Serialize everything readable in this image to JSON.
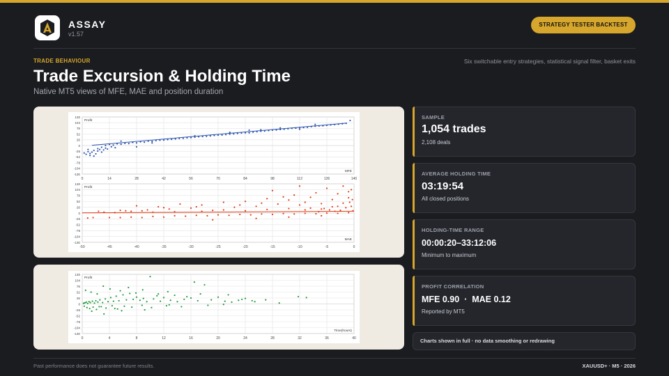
{
  "header": {
    "brand": "ASSAY",
    "version": "v1.57",
    "badge": "STRATEGY TESTER BACKTEST"
  },
  "hero": {
    "eyebrow": "TRADE BEHAVIOUR",
    "tagline": "Six switchable entry strategies, statistical signal filter, basket exits",
    "title": "Trade Excursion & Holding Time",
    "subtitle": "Native MT5 views of MFE, MAE and position duration"
  },
  "stats": [
    {
      "label": "SAMPLE",
      "value": "1,054 trades",
      "note": "2,108 deals"
    },
    {
      "label": "AVERAGE HOLDING TIME",
      "value": "03:19:54",
      "note": "All closed positions"
    },
    {
      "label": "HOLDING-TIME RANGE",
      "value": "00:00:20–33:12:06",
      "note": "Minimum to maximum"
    },
    {
      "label": "PROFIT CORRELATION",
      "value": "MFE 0.90  ·  MAE 0.12",
      "note": "Reported by MT5"
    }
  ],
  "charts_note": "Charts shown in full · no data smoothing or redrawing",
  "footer": {
    "disclaimer": "Past performance does not guarantee future results.",
    "meta": "XAUUSD+ · M5 · 2026"
  },
  "colors": {
    "accent": "#d6a72c",
    "mfe_series": "#2f56b0",
    "mae_series": "#e03a10",
    "holding_series": "#1e9a3a"
  },
  "chart_data": [
    {
      "type": "scatter",
      "ylabel": "Profit",
      "xlabel": "MFE",
      "x_ticks": [
        0,
        14,
        28,
        42,
        56,
        70,
        84,
        98,
        112,
        126,
        140
      ],
      "y_ticks": [
        130,
        104,
        78,
        52,
        26,
        0,
        -26,
        -52,
        -78,
        -104,
        -130
      ],
      "xlim": [
        0,
        140
      ],
      "ylim": [
        -130,
        130
      ],
      "grid": true,
      "series_color": "#2f56b0",
      "trend": {
        "from": [
          5,
          1
        ],
        "to": [
          136,
          102
        ]
      },
      "points": [
        [
          1,
          -34
        ],
        [
          2,
          -40
        ],
        [
          3,
          -28
        ],
        [
          4,
          -45
        ],
        [
          5,
          -30
        ],
        [
          6,
          -22
        ],
        [
          7,
          -38
        ],
        [
          8,
          -25
        ],
        [
          9,
          -18
        ],
        [
          10,
          -30
        ],
        [
          11,
          -20
        ],
        [
          12,
          -12
        ],
        [
          13,
          -16
        ],
        [
          15,
          -6
        ],
        [
          17,
          -10
        ],
        [
          3,
          -18
        ],
        [
          6,
          -48
        ],
        [
          4,
          -36
        ],
        [
          8,
          -14
        ],
        [
          10,
          -8
        ],
        [
          12,
          0
        ],
        [
          14,
          5
        ],
        [
          16,
          2
        ],
        [
          18,
          8
        ],
        [
          20,
          6
        ],
        [
          22,
          10
        ],
        [
          24,
          9
        ],
        [
          26,
          14
        ],
        [
          28,
          12
        ],
        [
          30,
          17
        ],
        [
          32,
          15
        ],
        [
          34,
          20
        ],
        [
          36,
          19
        ],
        [
          38,
          22
        ],
        [
          40,
          24
        ],
        [
          42,
          25
        ],
        [
          44,
          27
        ],
        [
          46,
          28
        ],
        [
          48,
          30
        ],
        [
          50,
          32
        ],
        [
          52,
          33
        ],
        [
          54,
          35
        ],
        [
          56,
          36
        ],
        [
          58,
          38
        ],
        [
          60,
          40
        ],
        [
          62,
          41
        ],
        [
          64,
          42
        ],
        [
          66,
          44
        ],
        [
          68,
          46
        ],
        [
          70,
          47
        ],
        [
          72,
          48
        ],
        [
          74,
          50
        ],
        [
          76,
          52
        ],
        [
          78,
          53
        ],
        [
          80,
          55
        ],
        [
          82,
          57
        ],
        [
          84,
          58
        ],
        [
          86,
          58
        ],
        [
          88,
          61
        ],
        [
          90,
          63
        ],
        [
          92,
          65
        ],
        [
          94,
          66
        ],
        [
          96,
          68
        ],
        [
          98,
          70
        ],
        [
          100,
          71
        ],
        [
          102,
          73
        ],
        [
          104,
          74
        ],
        [
          106,
          76
        ],
        [
          108,
          78
        ],
        [
          110,
          79
        ],
        [
          112,
          81
        ],
        [
          114,
          82
        ],
        [
          116,
          83
        ],
        [
          118,
          86
        ],
        [
          120,
          88
        ],
        [
          122,
          89
        ],
        [
          124,
          90
        ],
        [
          126,
          92
        ],
        [
          128,
          94
        ],
        [
          130,
          95
        ],
        [
          132,
          97
        ],
        [
          134,
          99
        ],
        [
          136,
          101
        ],
        [
          138,
          114
        ],
        [
          20,
          20
        ],
        [
          28,
          -6
        ],
        [
          36,
          12
        ],
        [
          58,
          44
        ],
        [
          76,
          60
        ],
        [
          86,
          70
        ],
        [
          92,
          72
        ],
        [
          102,
          80
        ],
        [
          112,
          74
        ],
        [
          120,
          96
        ]
      ]
    },
    {
      "type": "scatter",
      "ylabel": "Profit",
      "xlabel": "MAE",
      "x_ticks": [
        -50,
        -45,
        -40,
        -35,
        -30,
        -25,
        -20,
        -15,
        -10,
        -5,
        0
      ],
      "y_ticks": [
        130,
        104,
        78,
        52,
        26,
        0,
        -26,
        -52,
        -78,
        -104,
        -130
      ],
      "xlim": [
        -50,
        0
      ],
      "ylim": [
        -130,
        130
      ],
      "grid": true,
      "series_color": "#e03a10",
      "trend": {
        "from": [
          -50,
          1
        ],
        "to": [
          0,
          8
        ]
      },
      "points": [
        [
          -49,
          -22
        ],
        [
          -48,
          -20
        ],
        [
          -45,
          -20
        ],
        [
          -43,
          -20
        ],
        [
          -41,
          -18
        ],
        [
          -39,
          -20
        ],
        [
          -37,
          -15
        ],
        [
          -35,
          -18
        ],
        [
          -33,
          -12
        ],
        [
          -31,
          -14
        ],
        [
          -29,
          -10
        ],
        [
          -27,
          -12
        ],
        [
          -25,
          -8
        ],
        [
          -23,
          -10
        ],
        [
          -21,
          -6
        ],
        [
          -19,
          -8
        ],
        [
          -17,
          -4
        ],
        [
          -15,
          -6
        ],
        [
          -13,
          -2
        ],
        [
          -11,
          -4
        ],
        [
          -9,
          -1
        ],
        [
          -7,
          -3
        ],
        [
          -5,
          0
        ],
        [
          -3,
          -1
        ],
        [
          -1,
          2
        ],
        [
          -40,
          32
        ],
        [
          -38,
          14
        ],
        [
          -36,
          28
        ],
        [
          -34,
          18
        ],
        [
          -32,
          40
        ],
        [
          -30,
          22
        ],
        [
          -28,
          36
        ],
        [
          -26,
          12
        ],
        [
          -24,
          48
        ],
        [
          -22,
          26
        ],
        [
          -20,
          52
        ],
        [
          -18,
          30
        ],
        [
          -16,
          64
        ],
        [
          -15,
          100
        ],
        [
          -14,
          40
        ],
        [
          -12,
          58
        ],
        [
          -11,
          80
        ],
        [
          -10,
          36
        ],
        [
          -8,
          70
        ],
        [
          -7,
          90
        ],
        [
          -6,
          42
        ],
        [
          -5,
          110
        ],
        [
          -4,
          60
        ],
        [
          -3,
          86
        ],
        [
          -2,
          120
        ],
        [
          -1,
          68
        ],
        [
          -1,
          95
        ],
        [
          -2,
          44
        ],
        [
          -4,
          28
        ],
        [
          -6,
          18
        ],
        [
          -8,
          22
        ],
        [
          -9,
          14
        ],
        [
          -12,
          20
        ],
        [
          -16,
          16
        ],
        [
          -20,
          10
        ],
        [
          -24,
          14
        ],
        [
          -28,
          8
        ],
        [
          -33,
          6
        ],
        [
          -37,
          4
        ],
        [
          -42,
          10
        ],
        [
          -46,
          4
        ],
        [
          -47,
          8
        ],
        [
          -44,
          2
        ],
        [
          -26,
          -30
        ],
        [
          -18,
          -24
        ],
        [
          -12,
          -18
        ],
        [
          -6,
          -12
        ],
        [
          -3,
          30
        ],
        [
          -9,
          48
        ],
        [
          -13,
          72
        ],
        [
          -17,
          44
        ],
        [
          -21,
          36
        ],
        [
          -29,
          28
        ],
        [
          -35,
          24
        ],
        [
          -39,
          10
        ],
        [
          -41,
          8
        ],
        [
          -43,
          12
        ],
        [
          -10,
          120
        ],
        [
          -0.5,
          104
        ],
        [
          -0.5,
          30
        ],
        [
          -0.3,
          60
        ],
        [
          -0.2,
          10
        ],
        [
          -0.8,
          48
        ],
        [
          -1.5,
          24
        ],
        [
          -2.5,
          12
        ],
        [
          -3.5,
          8
        ],
        [
          -4.5,
          14
        ],
        [
          -5.5,
          20
        ],
        [
          -6.5,
          6
        ]
      ]
    },
    {
      "type": "scatter",
      "ylabel": "Profit",
      "xlabel": "Time(hours)",
      "x_ticks": [
        0,
        4,
        8,
        12,
        16,
        20,
        24,
        28,
        32,
        36,
        40
      ],
      "y_ticks": [
        130,
        104,
        78,
        52,
        26,
        0,
        -26,
        -52,
        -78,
        -104,
        -130
      ],
      "xlim": [
        0,
        40
      ],
      "ylim": [
        -130,
        130
      ],
      "grid": true,
      "series_color": "#1e9a3a",
      "points": [
        [
          0.2,
          3
        ],
        [
          0.4,
          5
        ],
        [
          0.6,
          8
        ],
        [
          0.8,
          2
        ],
        [
          1,
          10
        ],
        [
          1.2,
          6
        ],
        [
          1.5,
          12
        ],
        [
          1.8,
          4
        ],
        [
          2,
          14
        ],
        [
          2.3,
          8
        ],
        [
          2.6,
          18
        ],
        [
          3,
          6
        ],
        [
          3.4,
          22
        ],
        [
          3.8,
          10
        ],
        [
          4.2,
          28
        ],
        [
          4.6,
          12
        ],
        [
          5,
          34
        ],
        [
          5.4,
          14
        ],
        [
          6,
          40
        ],
        [
          6.5,
          18
        ],
        [
          7,
          46
        ],
        [
          7.5,
          20
        ],
        [
          8,
          30
        ],
        [
          8.5,
          16
        ],
        [
          9,
          24
        ],
        [
          9.5,
          10
        ],
        [
          10,
          120
        ],
        [
          10.5,
          22
        ],
        [
          11,
          36
        ],
        [
          11.5,
          12
        ],
        [
          12,
          28
        ],
        [
          13,
          16
        ],
        [
          14,
          10
        ],
        [
          15,
          20
        ],
        [
          16,
          26
        ],
        [
          16.5,
          96
        ],
        [
          17,
          14
        ],
        [
          18,
          84
        ],
        [
          19,
          18
        ],
        [
          20,
          30
        ],
        [
          21,
          12
        ],
        [
          22,
          8
        ],
        [
          23,
          16
        ],
        [
          24,
          24
        ],
        [
          25,
          14
        ],
        [
          25.4,
          10
        ],
        [
          31.8,
          32
        ],
        [
          33,
          28
        ],
        [
          0.3,
          -10
        ],
        [
          0.7,
          -16
        ],
        [
          1.1,
          -20
        ],
        [
          1.6,
          -14
        ],
        [
          2.1,
          -24
        ],
        [
          2.8,
          -12
        ],
        [
          3.5,
          -18
        ],
        [
          4.4,
          -8
        ],
        [
          5.2,
          -22
        ],
        [
          6.2,
          -10
        ],
        [
          7.3,
          -14
        ],
        [
          8.8,
          -6
        ],
        [
          10.2,
          -16
        ],
        [
          12.4,
          -8
        ],
        [
          14.6,
          -12
        ],
        [
          5.8,
          -30
        ],
        [
          3.2,
          -44
        ],
        [
          1.4,
          -32
        ],
        [
          2.5,
          -12
        ],
        [
          4.8,
          -20
        ],
        [
          9.2,
          -26
        ],
        [
          12.8,
          -4
        ],
        [
          18.5,
          -6
        ],
        [
          20.8,
          -2
        ],
        [
          0.5,
          60
        ],
        [
          1.3,
          52
        ],
        [
          2.2,
          44
        ],
        [
          3.1,
          78
        ],
        [
          4.1,
          66
        ],
        [
          5.6,
          58
        ],
        [
          6.8,
          72
        ],
        [
          7.9,
          48
        ],
        [
          8.9,
          62
        ],
        [
          11.2,
          44
        ],
        [
          12.6,
          54
        ],
        [
          13.6,
          38
        ],
        [
          15.4,
          32
        ],
        [
          17.4,
          44
        ],
        [
          21.5,
          40
        ],
        [
          23.5,
          20
        ],
        [
          27,
          18
        ],
        [
          29,
          4
        ]
      ]
    }
  ]
}
